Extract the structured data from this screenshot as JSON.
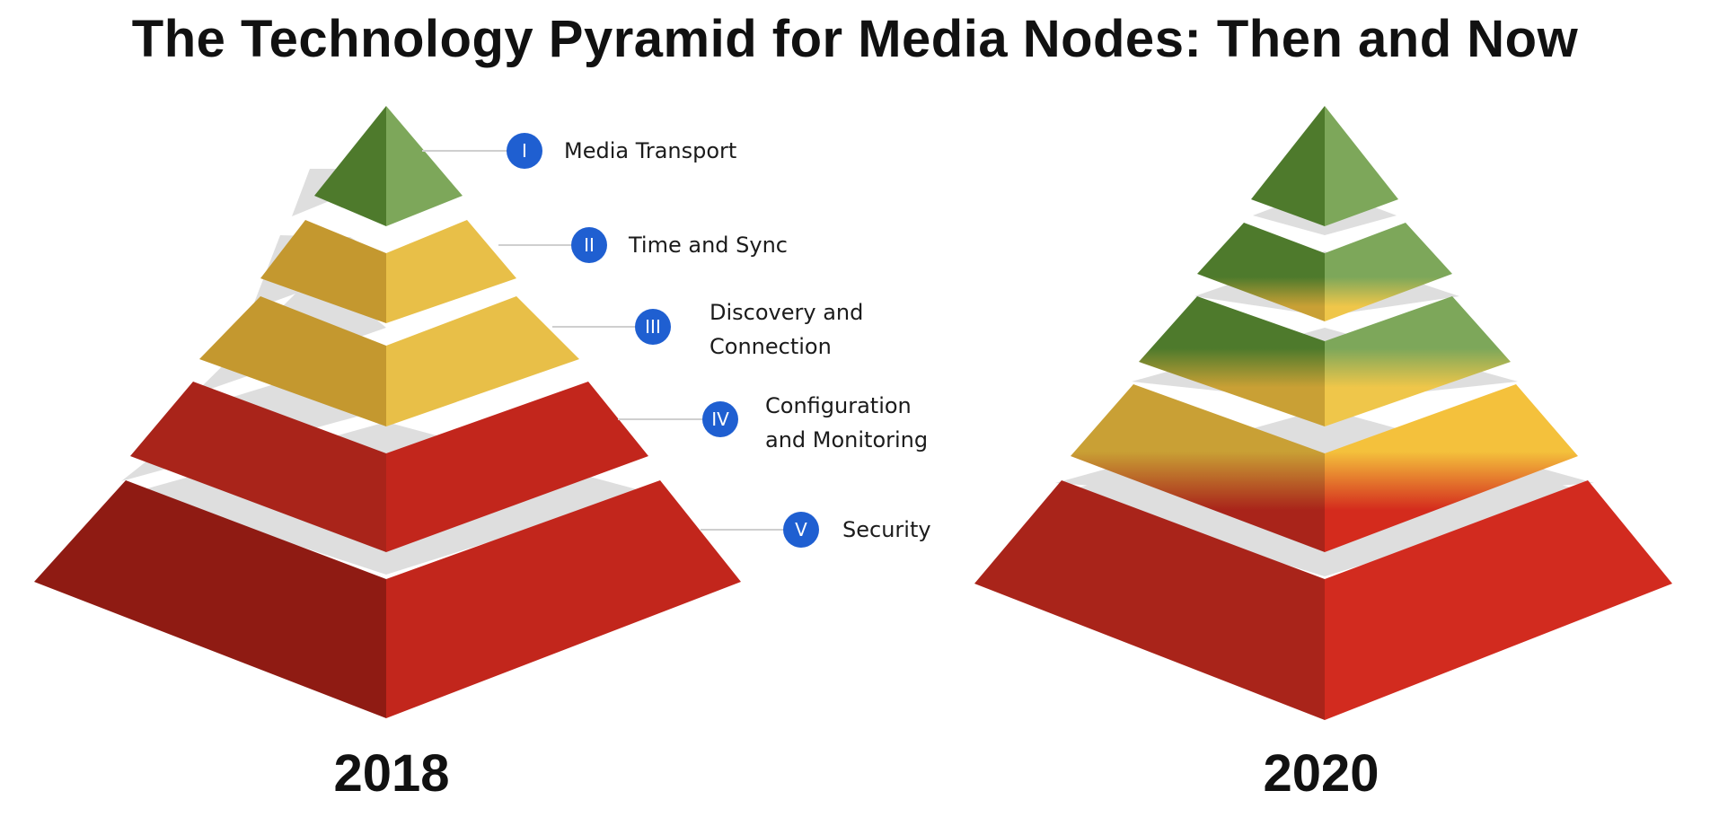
{
  "title": "The Technology Pyramid for Media Nodes: Then and Now",
  "layers": [
    {
      "numeral": "I",
      "lines": [
        "Media Transport"
      ]
    },
    {
      "numeral": "II",
      "lines": [
        "Time and Sync"
      ]
    },
    {
      "numeral": "III",
      "lines": [
        "Discovery and",
        "Connection"
      ]
    },
    {
      "numeral": "IV",
      "lines": [
        "Configuration",
        "and Monitoring"
      ]
    },
    {
      "numeral": "V",
      "lines": [
        "Security"
      ]
    }
  ],
  "pyramids": [
    {
      "year": "2018",
      "layer_colors": [
        "green",
        "yellow",
        "yellow",
        "red",
        "red"
      ]
    },
    {
      "year": "2020",
      "layer_colors": [
        "green",
        "green-yellow",
        "green-yellow",
        "yellow-red",
        "red"
      ]
    }
  ],
  "colors": {
    "green": "#6f9e4c",
    "yellow": "#e8bf48",
    "red": "#c2261c",
    "badge_blue": "#1f5fd1",
    "separator": "#dedede"
  }
}
